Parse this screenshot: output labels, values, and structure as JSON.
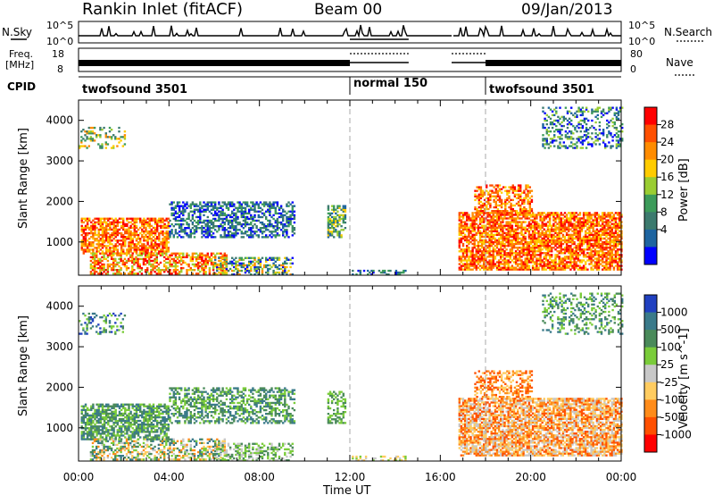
{
  "header": {
    "title": "Rankin Inlet (fitACF)",
    "beam": "Beam 00",
    "date": "09/Jan/2013"
  },
  "top_panels": {
    "nsky_label": "N.Sky",
    "nsky_ticks": [
      "10^5",
      "10^0"
    ],
    "nsearch_label": "N.Search",
    "freq_label_1": "Freq.",
    "freq_label_2": "[MHz]",
    "freq_ticks": [
      "18",
      "8"
    ],
    "nave_label": "Nave",
    "nave_ticks": [
      "80",
      "0"
    ],
    "cpid_label": "CPID",
    "cpid_segments": [
      {
        "label": "twofsound 3501",
        "start_hour": 0,
        "end_hour": 12
      },
      {
        "label": "normal 150",
        "start_hour": 12,
        "end_hour": 18
      },
      {
        "label": "twofsound 3501",
        "start_hour": 18,
        "end_hour": 24
      }
    ]
  },
  "chart_data": [
    {
      "type": "heatmap",
      "name": "power",
      "ylabel": "Slant Range [km]",
      "xlim": [
        0,
        24
      ],
      "ylim": [
        180,
        4500
      ],
      "yticks": [
        "1000",
        "2000",
        "3000",
        "4000"
      ],
      "colorbar": {
        "label": "Power [dB]",
        "ticks": [
          "28",
          "24",
          "20",
          "16",
          "12",
          "8",
          "4"
        ],
        "colors": [
          "#ff0000",
          "#ff5000",
          "#ff8c00",
          "#ffcc00",
          "#9acd32",
          "#3c9b5a",
          "#3c7a6e",
          "#1e64a0",
          "#0000ff"
        ]
      }
    },
    {
      "type": "heatmap",
      "name": "velocity",
      "ylabel": "Slant Range [km]",
      "xlabel": "Time UT",
      "xlim": [
        0,
        24
      ],
      "ylim": [
        180,
        4500
      ],
      "yticks": [
        "1000",
        "2000",
        "3000",
        "4000"
      ],
      "xticks": [
        "00:00",
        "04:00",
        "08:00",
        "12:00",
        "16:00",
        "20:00",
        "00:00"
      ],
      "colorbar": {
        "label": "Velocity [m s^-1]",
        "ticks": [
          "1000",
          "500",
          "100",
          "25",
          "-25",
          "-100",
          "-500",
          "-1000"
        ],
        "colors": [
          "#2040c0",
          "#3a7a8a",
          "#4a8a5a",
          "#7acc3a",
          "#c8c8c8",
          "#ffcc60",
          "#ff8c1a",
          "#ff5000",
          "#ff0000"
        ]
      }
    }
  ]
}
